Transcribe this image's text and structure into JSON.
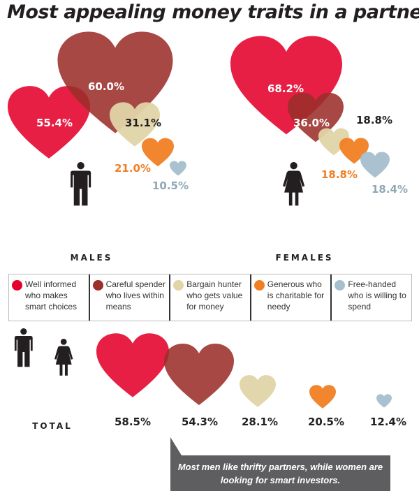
{
  "title": "Most appealing money traits in a partner",
  "legend": [
    {
      "label": "Well informed who makes smart choices",
      "color": "#e4002b"
    },
    {
      "label": "Careful spender who lives within means",
      "color": "#9b2f2a"
    },
    {
      "label": "Bargain hunter who gets value for money",
      "color": "#e0d4a8"
    },
    {
      "label": "Generous who is charitable for needy",
      "color": "#f07f23"
    },
    {
      "label": "Free-handed who is willing to spend",
      "color": "#a5bfcc"
    }
  ],
  "groups": [
    {
      "name": "MALES",
      "labels": [
        "55.4%",
        "60.0%",
        "31.1%",
        "21.0%",
        "10.5%"
      ]
    },
    {
      "name": "FEMALES",
      "labels": [
        "68.2%",
        "36.0%",
        "18.8%",
        "18.8%",
        "18.4%"
      ]
    },
    {
      "name": "TOTAL",
      "labels": [
        "58.5%",
        "54.3%",
        "28.1%",
        "20.5%",
        "12.4%"
      ]
    }
  ],
  "callout": "Most men like thrifty partners, while women are looking for smart investors.",
  "chart_data": {
    "type": "bar",
    "title": "Most appealing money traits in a partner",
    "categories": [
      "Well informed who makes smart choices",
      "Careful spender who lives within means",
      "Bargain hunter who gets value for money",
      "Generous who is charitable for needy",
      "Free-handed who is willing to spend"
    ],
    "series": [
      {
        "name": "MALES",
        "values": [
          55.4,
          60.0,
          31.1,
          21.0,
          10.5
        ]
      },
      {
        "name": "FEMALES",
        "values": [
          68.2,
          36.0,
          18.8,
          18.8,
          18.4
        ]
      },
      {
        "name": "TOTAL",
        "values": [
          58.5,
          54.3,
          28.1,
          20.5,
          12.4
        ]
      }
    ],
    "unit": "%",
    "mark": "heart"
  }
}
